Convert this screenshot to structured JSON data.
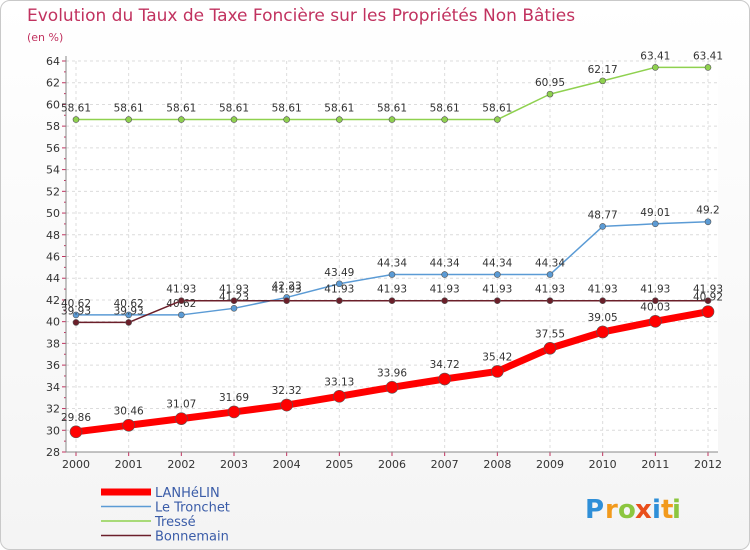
{
  "chart_data": {
    "type": "line",
    "title": "Evolution du Taux de Taxe Foncière sur les Propriétés Non Bâties",
    "ylabel": "(en %)",
    "xlabel": "",
    "ylim": [
      28,
      64
    ],
    "yticks": [
      28,
      30,
      32,
      34,
      36,
      38,
      40,
      42,
      44,
      46,
      48,
      50,
      52,
      54,
      56,
      58,
      60,
      62,
      64
    ],
    "categories": [
      "2000",
      "2001",
      "2002",
      "2003",
      "2004",
      "2005",
      "2006",
      "2007",
      "2008",
      "2009",
      "2010",
      "2011",
      "2012"
    ],
    "grid": true,
    "legend_position": "bottom-left",
    "series": [
      {
        "name": "Tressé",
        "color": "#8fd14f",
        "values": [
          58.61,
          58.61,
          58.61,
          58.61,
          58.61,
          58.61,
          58.61,
          58.61,
          58.61,
          60.95,
          62.17,
          63.41,
          63.41
        ],
        "labels": [
          "58.61",
          "58.61",
          "58.61",
          "58.61",
          "58.61",
          "58.61",
          "58.61",
          "58.61",
          "58.61",
          "60.95",
          "62.17",
          "63.41",
          "63.41"
        ]
      },
      {
        "name": "Le Tronchet",
        "color": "#5b9bd5",
        "values": [
          40.62,
          40.62,
          40.62,
          41.23,
          42.23,
          43.49,
          44.34,
          44.34,
          44.34,
          44.34,
          48.77,
          49.01,
          49.2
        ],
        "labels": [
          "40.62",
          "40.62",
          "40.62",
          "41.23",
          "42.23",
          "43.49",
          "44.34",
          "44.34",
          "44.34",
          "44.34",
          "48.77",
          "49.01",
          "49.2"
        ]
      },
      {
        "name": "Bonnemain",
        "color": "#6b1f2a",
        "values": [
          39.93,
          39.93,
          41.93,
          41.93,
          41.93,
          41.93,
          41.93,
          41.93,
          41.93,
          41.93,
          41.93,
          41.93,
          41.93
        ],
        "labels": [
          "39.93",
          "39.93",
          "41.93",
          "41.93",
          "41.93",
          "41.93",
          "41.93",
          "41.93",
          "41.93",
          "41.93",
          "41.93",
          "41.93",
          "41.93"
        ]
      },
      {
        "name": "LANHéLIN",
        "color": "#ff0000",
        "values": [
          29.86,
          30.46,
          31.07,
          31.69,
          32.32,
          33.13,
          33.96,
          34.72,
          35.42,
          37.55,
          39.05,
          40.03,
          40.92
        ],
        "labels": [
          "29.86",
          "30.46",
          "31.07",
          "31.69",
          "32.32",
          "33.13",
          "33.96",
          "34.72",
          "35.42",
          "37.55",
          "39.05",
          "40.03",
          "40.92"
        ]
      }
    ],
    "legend": [
      "LANHéLIN",
      "Le Tronchet",
      "Tressé",
      "Bonnemain"
    ]
  },
  "logo": {
    "letters": [
      "P",
      "r",
      "o",
      "x",
      "i",
      "t",
      "i"
    ],
    "colors": [
      "#2f8fd8",
      "#f29a1c",
      "#8cc63f",
      "#e94e1b",
      "#2f8fd8",
      "#f29a1c",
      "#8cc63f"
    ]
  }
}
